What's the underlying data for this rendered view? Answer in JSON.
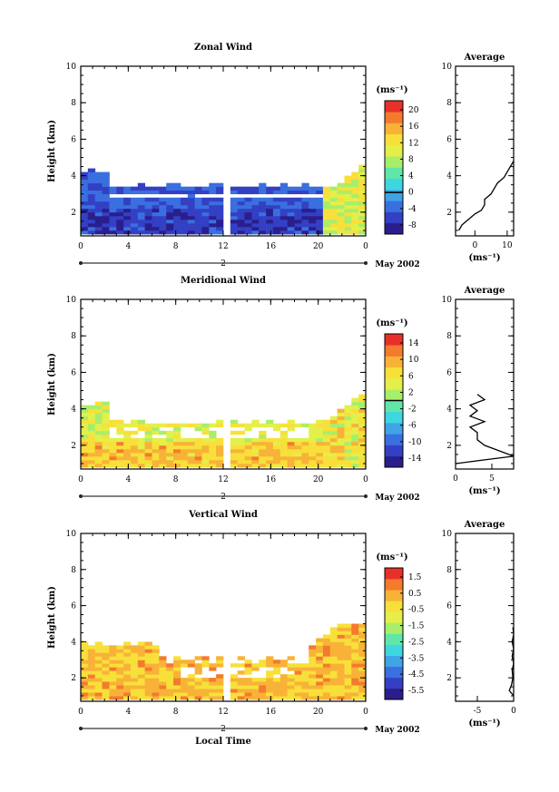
{
  "colorscale": [
    "#2a1e8c",
    "#3340c4",
    "#3a6fe0",
    "#3fa4e6",
    "#3ed6e0",
    "#60e6a8",
    "#a8ee6a",
    "#e4ef4a",
    "#f8e03a",
    "#f8b238",
    "#f47a2e",
    "#e8302a"
  ],
  "chart_data": [
    {
      "type": "heatmap",
      "title": "Zonal Wind",
      "ylabel": "Height (km)",
      "xlabel": "",
      "date_label": "May 2002",
      "day_label": "2",
      "x_ticks": [
        "0",
        "4",
        "8",
        "12",
        "16",
        "20",
        "0"
      ],
      "y_ticks": [
        "2",
        "4",
        "6",
        "8",
        "10"
      ],
      "xlim": [
        0,
        24
      ],
      "ylim": [
        0.7,
        10
      ],
      "colorbar": {
        "unit": "(ms⁻¹)",
        "ticks": [
          "20",
          "16",
          "12",
          "8",
          "4",
          "0",
          "-4",
          "-8"
        ],
        "range": [
          -10,
          22
        ],
        "zero_line": 0
      },
      "average": {
        "title": "Average",
        "xlabel": "(ms⁻¹)",
        "x_ticks": [
          "0",
          "10"
        ],
        "y_ticks": [
          "2",
          "4",
          "6",
          "8",
          "10"
        ],
        "xlim": [
          -6,
          12
        ],
        "ylim": [
          0.7,
          10
        ],
        "profile": [
          [
            -5,
            1.0
          ],
          [
            -4,
            1.3
          ],
          [
            -2,
            1.6
          ],
          [
            0,
            1.9
          ],
          [
            2,
            2.1
          ],
          [
            3,
            2.4
          ],
          [
            3,
            2.7
          ],
          [
            5,
            3.0
          ],
          [
            6,
            3.3
          ],
          [
            7,
            3.6
          ],
          [
            9,
            3.9
          ],
          [
            10,
            4.2
          ],
          [
            11,
            4.5
          ],
          [
            12,
            4.8
          ]
        ]
      }
    },
    {
      "type": "heatmap",
      "title": "Meridional Wind",
      "ylabel": "Height (km)",
      "xlabel": "",
      "date_label": "May 2002",
      "day_label": "2",
      "x_ticks": [
        "0",
        "4",
        "8",
        "12",
        "16",
        "20",
        "0"
      ],
      "y_ticks": [
        "2",
        "4",
        "6",
        "8",
        "10"
      ],
      "xlim": [
        0,
        24
      ],
      "ylim": [
        0.7,
        10
      ],
      "colorbar": {
        "unit": "(ms⁻¹)",
        "ticks": [
          "14",
          "10",
          "6",
          "2",
          "-2",
          "-6",
          "-10",
          "-14"
        ],
        "range": [
          -16,
          16
        ],
        "zero_line": 0
      },
      "average": {
        "title": "Average",
        "xlabel": "(ms⁻¹)",
        "x_ticks": [
          "0",
          "5"
        ],
        "y_ticks": [
          "2",
          "4",
          "6",
          "8",
          "10"
        ],
        "xlim": [
          0,
          8
        ],
        "ylim": [
          0.7,
          10
        ],
        "profile": [
          [
            0,
            1.0
          ],
          [
            4,
            1.2
          ],
          [
            8,
            1.4
          ],
          [
            6,
            1.7
          ],
          [
            4,
            2.0
          ],
          [
            3,
            2.3
          ],
          [
            3,
            2.7
          ],
          [
            2,
            3.0
          ],
          [
            4,
            3.3
          ],
          [
            2,
            3.6
          ],
          [
            3,
            3.9
          ],
          [
            2,
            4.2
          ],
          [
            4,
            4.5
          ],
          [
            3,
            4.8
          ]
        ]
      }
    },
    {
      "type": "heatmap",
      "title": "Vertical Wind",
      "ylabel": "Height (km)",
      "xlabel": "Local Time",
      "date_label": "May 2002",
      "day_label": "2",
      "x_ticks": [
        "0",
        "4",
        "8",
        "12",
        "16",
        "20",
        "0"
      ],
      "y_ticks": [
        "2",
        "4",
        "6",
        "8",
        "10"
      ],
      "xlim": [
        0,
        24
      ],
      "ylim": [
        0.7,
        10
      ],
      "colorbar": {
        "unit": "(ms⁻¹)",
        "ticks": [
          "1.5",
          "0.5",
          "-0.5",
          "-1.5",
          "-2.5",
          "-3.5",
          "-4.5",
          "-5.5"
        ],
        "range": [
          -6,
          2
        ],
        "zero_line": null
      },
      "average": {
        "title": "Average",
        "xlabel": "(ms⁻¹)",
        "x_ticks": [
          "-5",
          "0"
        ],
        "y_ticks": [
          "2",
          "4",
          "6",
          "8",
          "10"
        ],
        "xlim": [
          -8,
          0
        ],
        "ylim": [
          0.7,
          10
        ],
        "profile": [
          [
            0,
            1.0
          ],
          [
            -0.6,
            1.3
          ],
          [
            -0.3,
            1.6
          ],
          [
            -0.1,
            2.0
          ],
          [
            -0.2,
            2.4
          ],
          [
            0,
            2.8
          ],
          [
            -0.2,
            3.2
          ],
          [
            0,
            3.6
          ],
          [
            -0.2,
            4.0
          ],
          [
            0,
            4.4
          ],
          [
            -0.1,
            4.8
          ]
        ]
      }
    }
  ]
}
